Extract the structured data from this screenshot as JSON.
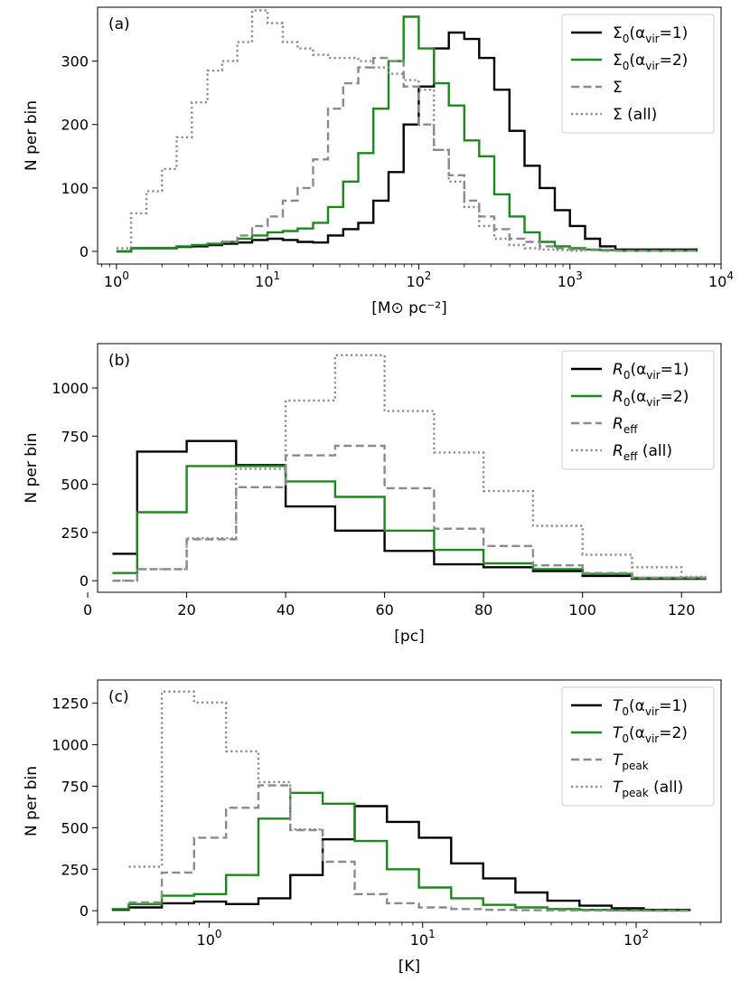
{
  "colors": {
    "black": "#000000",
    "green": "#1a8a1a",
    "gray": "#8a8a8a",
    "frame": "#000000"
  },
  "chart_data": [
    {
      "type": "line",
      "step": true,
      "panel_label": "(a)",
      "xlabel": "[M⊙ pc⁻²]",
      "ylabel": "N per bin",
      "xscale": "log",
      "xlim": [
        0.75,
        10000
      ],
      "ylim": [
        -20,
        385
      ],
      "grid": false,
      "legend_position": "top-right",
      "xticks": [
        {
          "value": 1,
          "base": "10",
          "exp": "0"
        },
        {
          "value": 10,
          "base": "10",
          "exp": "1"
        },
        {
          "value": 100,
          "base": "10",
          "exp": "2"
        },
        {
          "value": 1000,
          "base": "10",
          "exp": "3"
        },
        {
          "value": 10000,
          "base": "10",
          "exp": "4"
        }
      ],
      "yticks": [
        0,
        100,
        200,
        300
      ],
      "series": [
        {
          "name": "Σ₀(α_vir=1)",
          "legend": {
            "main": "Σ",
            "sub": "0",
            "rest": "(α",
            "sub2": "vir",
            "tail": "=1)"
          },
          "style": "solid",
          "color": "black",
          "edges": [
            1.0,
            1.25,
            2.5,
            3.15,
            4.0,
            5.0,
            6.3,
            7.9,
            10.0,
            12.6,
            15.8,
            20.0,
            25.1,
            31.6,
            39.8,
            50.1,
            63.1,
            79.4,
            100,
            126,
            158,
            200,
            251,
            316,
            398,
            501,
            631,
            794,
            1000,
            1260,
            1580,
            2000,
            7000
          ],
          "values": [
            0,
            5,
            7,
            8,
            10,
            12,
            14,
            18,
            20,
            18,
            15,
            14,
            25,
            35,
            45,
            80,
            125,
            200,
            260,
            320,
            345,
            335,
            305,
            255,
            190,
            135,
            100,
            65,
            40,
            20,
            8,
            3
          ]
        },
        {
          "name": "Σ₀(α_vir=2)",
          "legend": {
            "main": "Σ",
            "sub": "0",
            "rest": "(α",
            "sub2": "vir",
            "tail": "=2)"
          },
          "style": "solid",
          "color": "green",
          "edges": [
            1.0,
            1.25,
            2.5,
            3.15,
            4.0,
            5.0,
            6.3,
            7.9,
            10.0,
            12.6,
            15.8,
            20.0,
            25.1,
            31.6,
            39.8,
            50.1,
            63.1,
            79.4,
            100,
            126,
            158,
            200,
            251,
            316,
            398,
            501,
            631,
            794,
            1000,
            1260,
            1580,
            2000,
            7000
          ],
          "values": [
            0,
            5,
            8,
            10,
            12,
            15,
            20,
            25,
            30,
            32,
            36,
            45,
            70,
            110,
            155,
            225,
            300,
            370,
            320,
            265,
            230,
            175,
            150,
            90,
            55,
            30,
            15,
            8,
            5,
            3,
            2,
            1
          ]
        },
        {
          "name": "Σ",
          "legend": {
            "main": "Σ",
            "sub": "",
            "rest": "",
            "sub2": "",
            "tail": ""
          },
          "style": "dashed",
          "color": "gray",
          "edges": [
            5.0,
            6.3,
            7.9,
            10.0,
            12.6,
            15.8,
            20.0,
            25.1,
            31.6,
            39.8,
            50.1,
            63.1,
            79.4,
            100,
            126,
            158,
            200,
            251,
            316,
            398,
            501,
            631,
            794,
            1000,
            1260,
            1580,
            2000,
            7000
          ],
          "values": [
            15,
            25,
            40,
            55,
            80,
            100,
            145,
            225,
            265,
            290,
            305,
            300,
            260,
            200,
            160,
            120,
            80,
            55,
            35,
            20,
            15,
            8,
            5,
            3,
            2,
            1,
            1
          ]
        },
        {
          "name": "Σ (all)",
          "legend": {
            "main": "Σ",
            "sub": "",
            "rest": "",
            "sub2": "",
            "tail": " (all)"
          },
          "style": "dotted",
          "color": "gray",
          "edges": [
            1.0,
            1.25,
            1.58,
            2.0,
            2.5,
            3.15,
            4.0,
            5.0,
            6.3,
            7.9,
            10.0,
            12.6,
            15.8,
            20.0,
            25.1,
            31.6,
            39.8,
            50.1,
            63.1,
            79.4,
            100,
            126,
            158,
            200,
            251,
            316,
            398,
            501,
            631,
            794,
            1000,
            1260
          ],
          "values": [
            5,
            60,
            95,
            130,
            180,
            235,
            285,
            300,
            330,
            380,
            360,
            330,
            320,
            310,
            305,
            305,
            300,
            290,
            280,
            270,
            255,
            160,
            110,
            70,
            40,
            20,
            10,
            5,
            3,
            2,
            1
          ]
        }
      ]
    },
    {
      "type": "line",
      "step": true,
      "panel_label": "(b)",
      "xlabel": "[pc]",
      "ylabel": "N per bin",
      "xscale": "linear",
      "xlim": [
        2,
        128
      ],
      "ylim": [
        -60,
        1230
      ],
      "grid": false,
      "legend_position": "top-right",
      "xticks": [
        {
          "value": 0,
          "label": "0"
        },
        {
          "value": 20,
          "label": "20"
        },
        {
          "value": 40,
          "label": "40"
        },
        {
          "value": 60,
          "label": "60"
        },
        {
          "value": 80,
          "label": "80"
        },
        {
          "value": 100,
          "label": "100"
        },
        {
          "value": 120,
          "label": "120"
        }
      ],
      "yticks": [
        0,
        250,
        500,
        750,
        1000
      ],
      "series": [
        {
          "name": "R₀(α_vir=1)",
          "legend": {
            "main": "R",
            "sub": "0",
            "rest": "(α",
            "sub2": "vir",
            "tail": "=1)"
          },
          "style": "solid",
          "color": "black",
          "edges": [
            5,
            10,
            20,
            30,
            40,
            50,
            60,
            70,
            80,
            90,
            100,
            110,
            125
          ],
          "values": [
            140,
            670,
            725,
            600,
            385,
            260,
            155,
            85,
            70,
            50,
            25,
            10
          ]
        },
        {
          "name": "R₀(α_vir=2)",
          "legend": {
            "main": "R",
            "sub": "0",
            "rest": "(α",
            "sub2": "vir",
            "tail": "=2)"
          },
          "style": "solid",
          "color": "green",
          "edges": [
            5,
            10,
            20,
            30,
            40,
            50,
            60,
            70,
            80,
            90,
            100,
            110,
            125
          ],
          "values": [
            40,
            355,
            595,
            595,
            515,
            435,
            260,
            160,
            90,
            60,
            35,
            15
          ]
        },
        {
          "name": "R_eff",
          "legend": {
            "main": "R",
            "sub": "eff",
            "rest": "",
            "sub2": "",
            "tail": ""
          },
          "style": "dashed",
          "color": "gray",
          "edges": [
            5,
            10,
            20,
            30,
            40,
            50,
            60,
            70,
            80,
            90,
            100,
            110,
            125
          ],
          "values": [
            0,
            60,
            215,
            485,
            650,
            700,
            480,
            270,
            180,
            80,
            40,
            15
          ]
        },
        {
          "name": "R_eff (all)",
          "legend": {
            "main": "R",
            "sub": "eff",
            "rest": "",
            "sub2": "",
            "tail": " (all)"
          },
          "style": "dotted",
          "color": "gray",
          "edges": [
            5,
            10,
            20,
            30,
            40,
            50,
            60,
            70,
            80,
            90,
            100,
            110,
            120,
            125
          ],
          "values": [
            0,
            60,
            220,
            580,
            935,
            1170,
            880,
            665,
            465,
            285,
            135,
            70,
            20
          ]
        }
      ]
    },
    {
      "type": "line",
      "step": true,
      "panel_label": "(c)",
      "xlabel": "[K]",
      "ylabel": "N per bin",
      "xscale": "log",
      "xlim": [
        0.3,
        250
      ],
      "ylim": [
        -70,
        1390
      ],
      "grid": false,
      "legend_position": "top-right",
      "xticks": [
        {
          "value": 1,
          "base": "10",
          "exp": "0"
        },
        {
          "value": 10,
          "base": "10",
          "exp": "1"
        },
        {
          "value": 100,
          "base": "10",
          "exp": "2"
        }
      ],
      "yticks": [
        0,
        250,
        500,
        750,
        1000,
        1250
      ],
      "series": [
        {
          "name": "T₀(α_vir=1)",
          "legend": {
            "main": "T",
            "sub": "0",
            "rest": "(α",
            "sub2": "vir",
            "tail": "=1)"
          },
          "style": "solid",
          "color": "black",
          "edges": [
            0.35,
            0.42,
            0.6,
            0.85,
            1.2,
            1.7,
            2.4,
            3.4,
            4.8,
            6.8,
            9.6,
            13.6,
            19.2,
            27.2,
            38.4,
            54.3,
            76.8,
            108.6,
            180
          ],
          "values": [
            5,
            20,
            45,
            55,
            40,
            75,
            215,
            430,
            630,
            535,
            440,
            285,
            195,
            110,
            60,
            30,
            15,
            5
          ]
        },
        {
          "name": "T₀(α_vir=2)",
          "legend": {
            "main": "T",
            "sub": "0",
            "rest": "(α",
            "sub2": "vir",
            "tail": "=2)"
          },
          "style": "solid",
          "color": "green",
          "edges": [
            0.35,
            0.42,
            0.6,
            0.85,
            1.2,
            1.7,
            2.4,
            3.4,
            4.8,
            6.8,
            9.6,
            13.6,
            19.2,
            27.2,
            38.4,
            54.3,
            76.8,
            108.6,
            180
          ],
          "values": [
            10,
            40,
            90,
            100,
            215,
            555,
            710,
            645,
            420,
            250,
            140,
            75,
            35,
            20,
            10,
            5,
            3,
            2
          ]
        },
        {
          "name": "T_peak",
          "legend": {
            "main": "T",
            "sub": "peak",
            "rest": "",
            "sub2": "",
            "tail": ""
          },
          "style": "dashed",
          "color": "gray",
          "edges": [
            0.42,
            0.6,
            0.85,
            1.2,
            1.7,
            2.4,
            3.4,
            4.8,
            6.8,
            9.6,
            13.6,
            19.2,
            27.2,
            38.4,
            54.3,
            76.8,
            108.6,
            180
          ],
          "values": [
            50,
            230,
            440,
            620,
            755,
            485,
            295,
            100,
            45,
            20,
            10,
            5,
            3,
            2,
            1,
            1,
            0
          ]
        },
        {
          "name": "T_peak (all)",
          "legend": {
            "main": "T",
            "sub": "peak",
            "rest": "",
            "sub2": "",
            "tail": " (all)"
          },
          "style": "dotted",
          "color": "gray",
          "edges": [
            0.42,
            0.6,
            0.85,
            1.2,
            1.7,
            2.4,
            3.4
          ],
          "values": [
            265,
            1320,
            1255,
            960,
            775,
            490
          ]
        }
      ]
    }
  ]
}
